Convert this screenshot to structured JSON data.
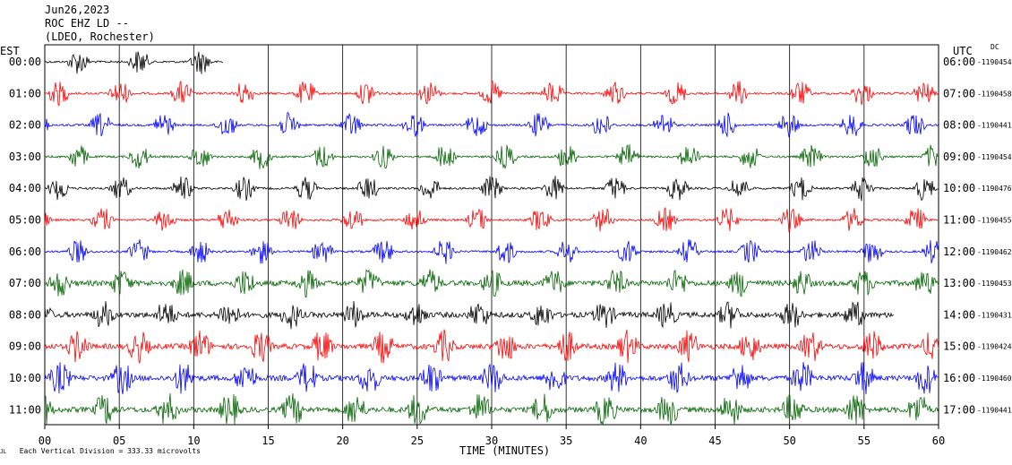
{
  "header": {
    "date": "Jun26,2023",
    "station": "ROC EHZ LD --",
    "location": "(LDEO, Rochester)"
  },
  "left_timezone": "EST",
  "right_timezone": "UTC",
  "dc_label": "DC",
  "footer_note": "Each Vertical Division = 333.33 microvolts",
  "corner_mark": "JL",
  "chart_data": {
    "type": "line",
    "xlabel": "TIME (MINUTES)",
    "x_ticks": [
      "00",
      "05",
      "10",
      "15",
      "20",
      "25",
      "30",
      "35",
      "40",
      "45",
      "50",
      "55",
      "60"
    ],
    "xlim": [
      0,
      60
    ],
    "trace_colors": [
      "#000000",
      "#ff0000",
      "#0000ff",
      "#006400"
    ],
    "rows": [
      {
        "est": "00:00",
        "utc": "06:00",
        "dc": "-1190454",
        "end_minute": 12
      },
      {
        "est": "01:00",
        "utc": "07:00",
        "dc": "-1190458",
        "end_minute": 60
      },
      {
        "est": "02:00",
        "utc": "08:00",
        "dc": "-1190441",
        "end_minute": 60
      },
      {
        "est": "03:00",
        "utc": "09:00",
        "dc": "-1190454",
        "end_minute": 60
      },
      {
        "est": "04:00",
        "utc": "10:00",
        "dc": "-1190476",
        "end_minute": 60
      },
      {
        "est": "05:00",
        "utc": "11:00",
        "dc": "-1190455",
        "end_minute": 60
      },
      {
        "est": "06:00",
        "utc": "12:00",
        "dc": "-1190462",
        "end_minute": 60
      },
      {
        "est": "07:00",
        "utc": "13:00",
        "dc": "-1190453",
        "end_minute": 60
      },
      {
        "est": "08:00",
        "utc": "14:00",
        "dc": "-1190431",
        "end_minute": 57
      },
      {
        "est": "09:00",
        "utc": "15:00",
        "dc": "-1190424",
        "end_minute": 60
      },
      {
        "est": "10:00",
        "utc": "16:00",
        "dc": "-1190460",
        "end_minute": 60
      },
      {
        "est": "11:00",
        "utc": "17:00",
        "dc": "-1190441",
        "end_minute": 60
      }
    ]
  }
}
